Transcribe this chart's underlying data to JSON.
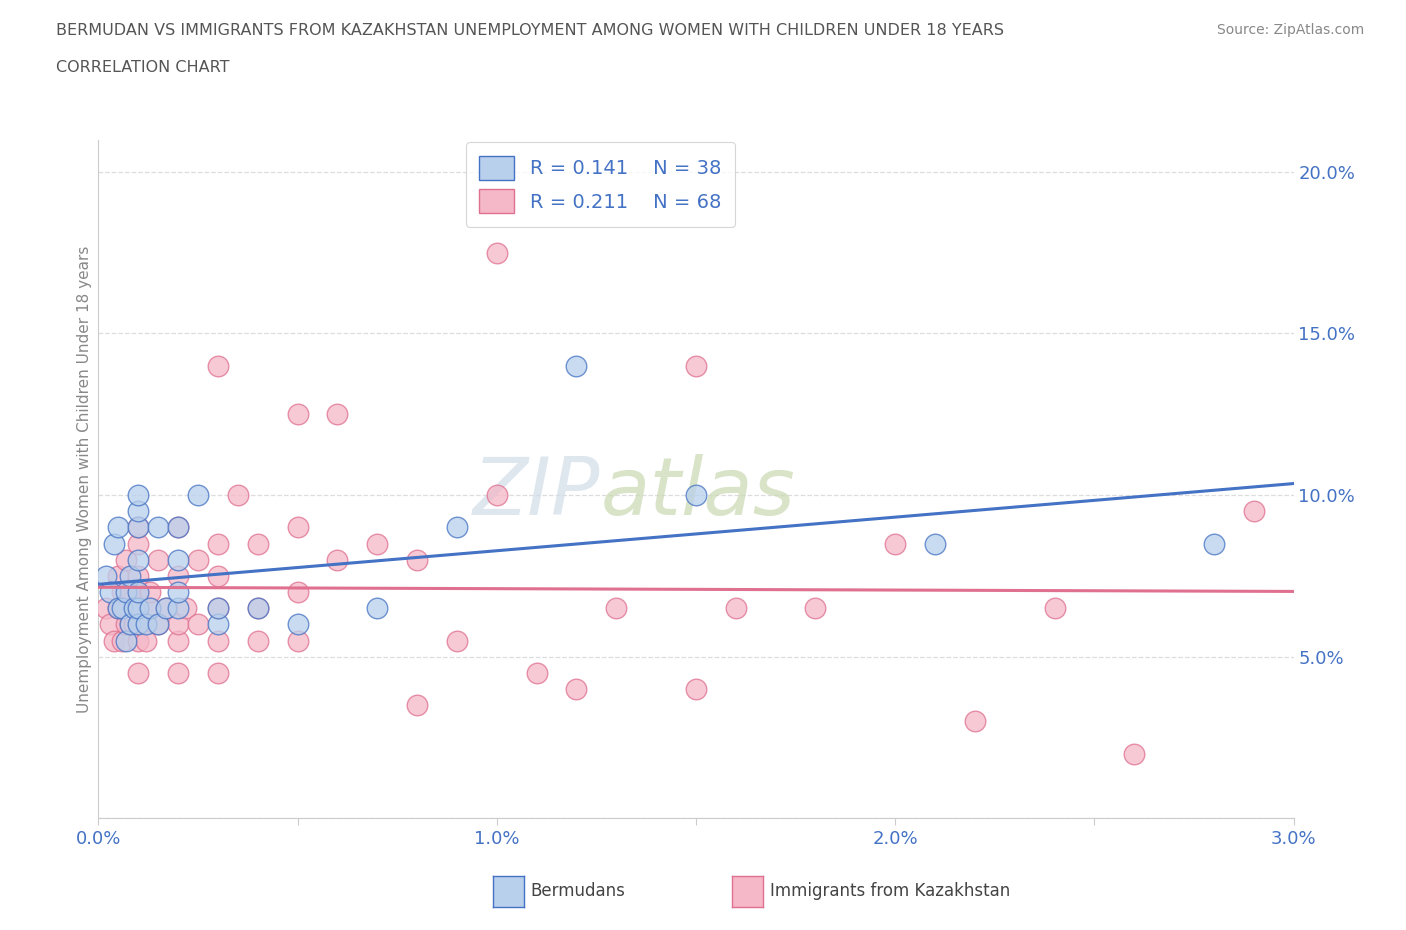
{
  "title_line1": "BERMUDAN VS IMMIGRANTS FROM KAZAKHSTAN UNEMPLOYMENT AMONG WOMEN WITH CHILDREN UNDER 18 YEARS",
  "title_line2": "CORRELATION CHART",
  "source": "Source: ZipAtlas.com",
  "ylabel": "Unemployment Among Women with Children Under 18 years",
  "xlim": [
    0.0,
    0.03
  ],
  "ylim": [
    0.0,
    0.21
  ],
  "xticks": [
    0.0,
    0.005,
    0.01,
    0.015,
    0.02,
    0.025,
    0.03
  ],
  "xtick_labels": [
    "0.0%",
    "",
    "1.0%",
    "",
    "2.0%",
    "",
    "3.0%"
  ],
  "yticks": [
    0.0,
    0.05,
    0.1,
    0.15,
    0.2
  ],
  "ytick_labels": [
    "",
    "5.0%",
    "10.0%",
    "15.0%",
    "20.0%"
  ],
  "legend_r1": "R = 0.141",
  "legend_n1": "N = 38",
  "legend_r2": "R = 0.211",
  "legend_n2": "N = 68",
  "blue_fill": "#b8d0ec",
  "blue_edge": "#4472c4",
  "pink_fill": "#f4b8c8",
  "pink_edge": "#e07090",
  "line_blue": "#4472c4",
  "line_pink": "#e07090",
  "tick_color": "#4472c4",
  "grid_color": "#dddddd",
  "spine_color": "#cccccc",
  "watermark_text": "ZIPatlas",
  "legend_bermudans": "Bermudans",
  "legend_kaz": "Immigrants from Kazakhstan",
  "blue_x": [
    0.0002,
    0.0003,
    0.0004,
    0.0005,
    0.0005,
    0.0006,
    0.0007,
    0.0007,
    0.0008,
    0.0008,
    0.0009,
    0.001,
    0.001,
    0.001,
    0.001,
    0.001,
    0.001,
    0.001,
    0.0012,
    0.0013,
    0.0015,
    0.0015,
    0.0017,
    0.002,
    0.002,
    0.002,
    0.002,
    0.0025,
    0.003,
    0.003,
    0.004,
    0.005,
    0.007,
    0.009,
    0.012,
    0.015,
    0.021,
    0.028
  ],
  "blue_y": [
    0.075,
    0.07,
    0.085,
    0.065,
    0.09,
    0.065,
    0.055,
    0.07,
    0.06,
    0.075,
    0.065,
    0.06,
    0.065,
    0.07,
    0.08,
    0.09,
    0.095,
    0.1,
    0.06,
    0.065,
    0.06,
    0.09,
    0.065,
    0.065,
    0.07,
    0.08,
    0.09,
    0.1,
    0.06,
    0.065,
    0.065,
    0.06,
    0.065,
    0.09,
    0.14,
    0.1,
    0.085,
    0.085
  ],
  "pink_x": [
    0.0002,
    0.0003,
    0.0004,
    0.0005,
    0.0005,
    0.0006,
    0.0006,
    0.0007,
    0.0007,
    0.0008,
    0.0008,
    0.0009,
    0.001,
    0.001,
    0.001,
    0.001,
    0.001,
    0.001,
    0.001,
    0.001,
    0.0012,
    0.0013,
    0.0013,
    0.0015,
    0.0015,
    0.0017,
    0.002,
    0.002,
    0.002,
    0.002,
    0.002,
    0.0022,
    0.0025,
    0.0025,
    0.003,
    0.003,
    0.003,
    0.003,
    0.003,
    0.003,
    0.0035,
    0.004,
    0.004,
    0.004,
    0.005,
    0.005,
    0.005,
    0.005,
    0.006,
    0.006,
    0.007,
    0.008,
    0.008,
    0.009,
    0.01,
    0.01,
    0.011,
    0.012,
    0.013,
    0.015,
    0.015,
    0.016,
    0.018,
    0.02,
    0.022,
    0.024,
    0.026,
    0.029
  ],
  "pink_y": [
    0.065,
    0.06,
    0.055,
    0.065,
    0.075,
    0.055,
    0.07,
    0.06,
    0.08,
    0.06,
    0.07,
    0.06,
    0.045,
    0.055,
    0.06,
    0.065,
    0.07,
    0.075,
    0.085,
    0.09,
    0.055,
    0.065,
    0.07,
    0.06,
    0.08,
    0.065,
    0.045,
    0.055,
    0.06,
    0.075,
    0.09,
    0.065,
    0.06,
    0.08,
    0.045,
    0.055,
    0.065,
    0.075,
    0.085,
    0.14,
    0.1,
    0.055,
    0.065,
    0.085,
    0.055,
    0.07,
    0.09,
    0.125,
    0.08,
    0.125,
    0.085,
    0.035,
    0.08,
    0.055,
    0.1,
    0.175,
    0.045,
    0.04,
    0.065,
    0.04,
    0.14,
    0.065,
    0.065,
    0.085,
    0.03,
    0.065,
    0.02,
    0.095
  ]
}
